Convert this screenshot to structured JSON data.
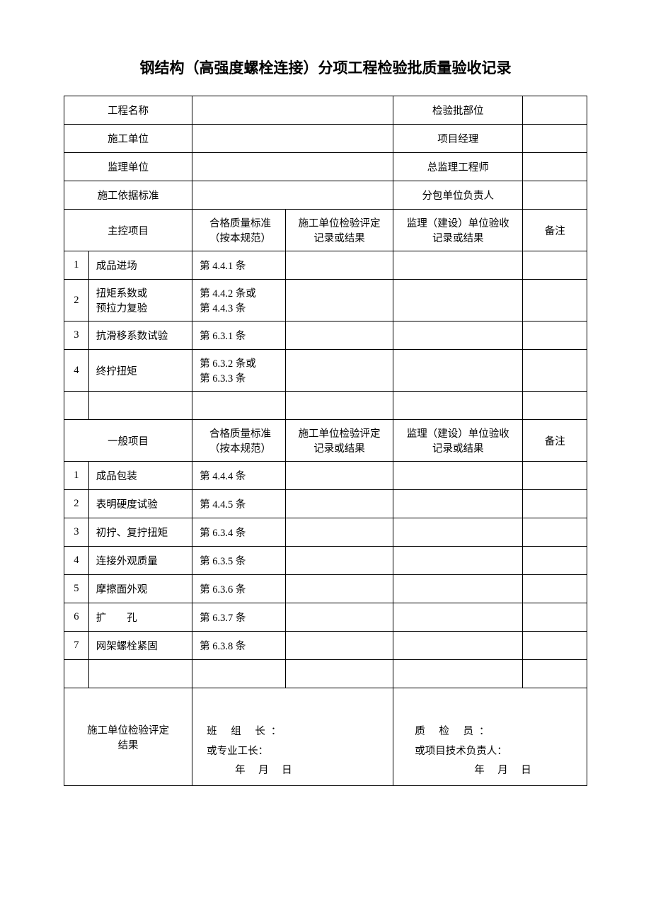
{
  "title": "钢结构（高强度螺栓连接）分项工程检验批质量验收记录",
  "header_rows": [
    {
      "l1": "工程名称",
      "v1": "",
      "l2": "检验批部位",
      "v2": ""
    },
    {
      "l1": "施工单位",
      "v1": "",
      "l2": "项目经理",
      "v2": ""
    },
    {
      "l1": "监理单位",
      "v1": "",
      "l2": "总监理工程师",
      "v2": ""
    },
    {
      "l1": "施工依据标准",
      "v1": "",
      "l2": "分包单位负责人",
      "v2": ""
    }
  ],
  "section_hdr": {
    "main": "主控项目",
    "gen": "一般项目",
    "std": "合格质量标准\n（按本规范）",
    "rec1": "施工单位检验评定\n记录或结果",
    "rec2": "监理（建设）单位验收\n记录或结果",
    "note": "备注"
  },
  "main_items": [
    {
      "n": "1",
      "name": "成品进场",
      "std": "第 4.4.1 条"
    },
    {
      "n": "2",
      "name": "扭矩系数或\n预拉力复验",
      "std": "第 4.4.2 条或\n第 4.4.3 条"
    },
    {
      "n": "3",
      "name": "抗滑移系数试验",
      "std": "第 6.3.1 条"
    },
    {
      "n": "4",
      "name": "终拧扭矩",
      "std": "第 6.3.2 条或\n第 6.3.3 条"
    }
  ],
  "gen_items": [
    {
      "n": "1",
      "name": "成品包装",
      "std": "第 4.4.4 条"
    },
    {
      "n": "2",
      "name": "表明硬度试验",
      "std": "第 4.4.5 条"
    },
    {
      "n": "3",
      "name": "初拧、复拧扭矩",
      "std": "第 6.3.4 条"
    },
    {
      "n": "4",
      "name": "连接外观质量",
      "std": "第 6.3.5 条"
    },
    {
      "n": "5",
      "name": "摩擦面外观",
      "std": "第 6.3.6 条"
    },
    {
      "n": "6",
      "name": "扩  孔",
      "std": "第 6.3.7 条"
    },
    {
      "n": "7",
      "name": "网架螺栓紧固",
      "std": "第 6.3.8 条"
    }
  ],
  "sig": {
    "result_label": "施工单位检验评定\n结果",
    "l1": "班 组 长：",
    "l2": "或专业工长：",
    "l3": "年 月 日",
    "r1": "质 检 员：",
    "r2": "或项目技术负责人：",
    "r3": "年 月 日"
  }
}
